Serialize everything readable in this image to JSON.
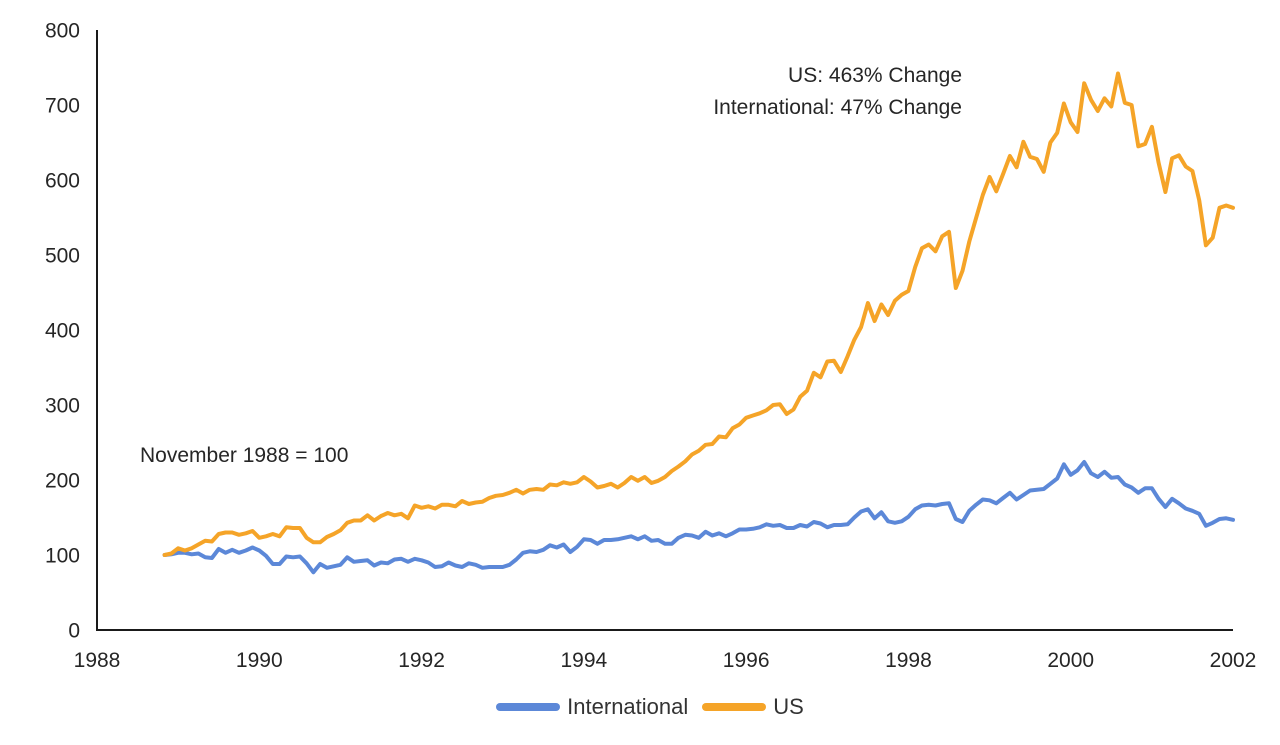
{
  "annotations": {
    "us_change": "US: 463% Change",
    "international_change": "International: 47% Change",
    "base_note": "November 1988 = 100"
  },
  "axes": {
    "text_color": "#262626",
    "line_color": "#1a1a1a"
  },
  "chart_data": {
    "type": "line",
    "title": "",
    "xlabel": "",
    "ylabel": "",
    "grid": false,
    "legend_position": "bottom-center",
    "x_ticks": [
      1988,
      1990,
      1992,
      1994,
      1996,
      1998,
      2000,
      2002
    ],
    "y_ticks": [
      0,
      100,
      200,
      300,
      400,
      500,
      600,
      700,
      800
    ],
    "x_range": [
      1988,
      2002
    ],
    "y_range": [
      0,
      800
    ],
    "x_unit": "year",
    "x_start": 1988.8333,
    "x_step": 0.0833333,
    "series": [
      {
        "name": "International",
        "color": "#5C88D8",
        "values": [
          100,
          101,
          103,
          103,
          101,
          102,
          97,
          96,
          108,
          103,
          107,
          103,
          106,
          110,
          106,
          99,
          88,
          88,
          98,
          97,
          98,
          89,
          77,
          88,
          83,
          85,
          87,
          97,
          91,
          92,
          93,
          86,
          90,
          89,
          94,
          95,
          91,
          95,
          93,
          90,
          84,
          85,
          90,
          86,
          84,
          89,
          87,
          83,
          84,
          84,
          84,
          87,
          94,
          103,
          105,
          104,
          107,
          113,
          110,
          114,
          104,
          111,
          121,
          120,
          115,
          120,
          120,
          121,
          123,
          125,
          121,
          125,
          119,
          120,
          115,
          115,
          123,
          127,
          126,
          123,
          131,
          126,
          129,
          125,
          129,
          134,
          134,
          135,
          137,
          141,
          139,
          140,
          136,
          136,
          140,
          138,
          144,
          142,
          137,
          140,
          140,
          141,
          150,
          158,
          161,
          149,
          157,
          145,
          143,
          145,
          151,
          161,
          166,
          167,
          166,
          168,
          169,
          148,
          144,
          159,
          167,
          174,
          173,
          169,
          176,
          183,
          174,
          180,
          186,
          187,
          188,
          195,
          202,
          221,
          207,
          213,
          224,
          209,
          204,
          211,
          203,
          204,
          194,
          190,
          183,
          189,
          189,
          175,
          164,
          175,
          169,
          162,
          159,
          155,
          139,
          143,
          148,
          149,
          147
        ]
      },
      {
        "name": "US",
        "color": "#F5A428",
        "values": [
          100,
          102,
          109,
          106,
          109,
          114,
          119,
          118,
          128,
          130,
          130,
          127,
          129,
          132,
          123,
          125,
          128,
          125,
          137,
          136,
          136,
          123,
          117,
          117,
          124,
          128,
          133,
          143,
          146,
          146,
          153,
          146,
          152,
          156,
          153,
          155,
          149,
          166,
          163,
          165,
          162,
          167,
          167,
          165,
          172,
          168,
          170,
          171,
          176,
          179,
          180,
          183,
          187,
          182,
          187,
          188,
          187,
          194,
          193,
          197,
          195,
          197,
          204,
          198,
          190,
          192,
          195,
          190,
          196,
          204,
          199,
          204,
          196,
          199,
          204,
          212,
          218,
          225,
          234,
          239,
          247,
          248,
          258,
          257,
          269,
          274,
          283,
          286,
          289,
          293,
          300,
          301,
          288,
          294,
          311,
          319,
          343,
          337,
          358,
          359,
          344,
          365,
          387,
          404,
          436,
          412,
          434,
          420,
          439,
          447,
          452,
          484,
          509,
          514,
          505,
          525,
          531,
          456,
          479,
          518,
          549,
          580,
          604,
          585,
          608,
          632,
          617,
          651,
          631,
          628,
          611,
          650,
          663,
          702,
          677,
          664,
          729,
          707,
          692,
          709,
          698,
          742,
          703,
          700,
          645,
          648,
          671,
          623,
          584,
          629,
          633,
          618,
          612,
          573,
          513,
          523,
          563,
          566,
          563
        ]
      }
    ]
  },
  "legend": {
    "items": [
      {
        "label": "International"
      },
      {
        "label": "US"
      }
    ]
  }
}
